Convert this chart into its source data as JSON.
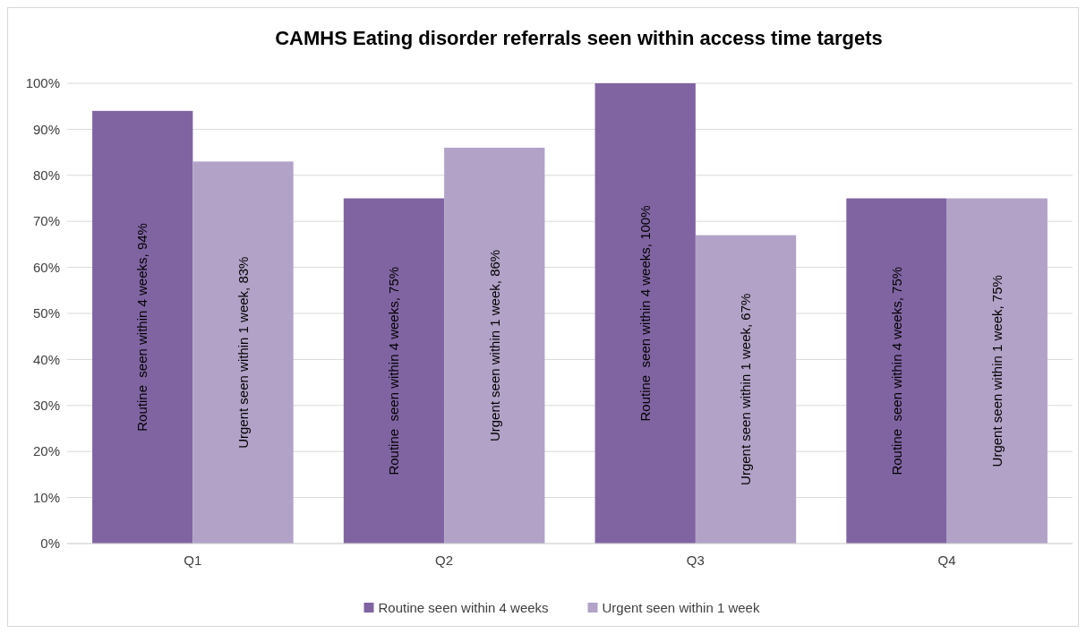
{
  "chart_data": {
    "type": "bar",
    "title": "CAMHS Eating disorder referrals seen within access time targets",
    "categories": [
      "Q1",
      "Q2",
      "Q3",
      "Q4"
    ],
    "series": [
      {
        "name": "Routine seen within 4 weeks",
        "color": "#8064a2",
        "values": [
          94,
          75,
          100,
          75
        ],
        "value_labels": [
          "Routine  seen within 4 weeks, 94%",
          "Routine  seen within 4 weeks, 75%",
          "Routine  seen within 4 weeks, 100%",
          "Routine  seen within 4 weeks, 75%"
        ]
      },
      {
        "name": "Urgent seen within 1 week",
        "color": "#b2a2c7",
        "values": [
          83,
          86,
          67,
          75
        ],
        "value_labels": [
          "Urgent seen within 1 week, 83%",
          "Urgent seen within 1 week, 86%",
          "Urgent seen within 1 week, 67%",
          "Urgent seen within 1 week, 75%"
        ]
      }
    ],
    "ylim": [
      0,
      100
    ],
    "yticks": [
      {
        "value": 0,
        "label": "0%"
      },
      {
        "value": 10,
        "label": "10%"
      },
      {
        "value": 20,
        "label": "20%"
      },
      {
        "value": 30,
        "label": "30%"
      },
      {
        "value": 40,
        "label": "40%"
      },
      {
        "value": 50,
        "label": "50%"
      },
      {
        "value": 60,
        "label": "60%"
      },
      {
        "value": 70,
        "label": "70%"
      },
      {
        "value": 80,
        "label": "80%"
      },
      {
        "value": 90,
        "label": "90%"
      },
      {
        "value": 100,
        "label": "100%"
      }
    ],
    "grid": "y",
    "legend": "bottom"
  }
}
